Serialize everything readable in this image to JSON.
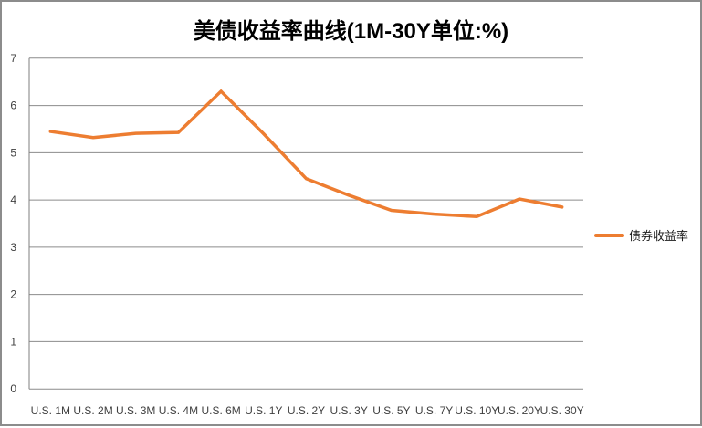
{
  "chart_data": {
    "type": "line",
    "title": "美债收益率曲线(1M-30Y单位:%)",
    "xlabel": "",
    "ylabel": "",
    "categories": [
      "U.S. 1M",
      "U.S. 2M",
      "U.S. 3M",
      "U.S. 4M",
      "U.S. 6M",
      "U.S. 1Y",
      "U.S. 2Y",
      "U.S. 3Y",
      "U.S. 5Y",
      "U.S. 7Y",
      "U.S. 10Y",
      "U.S. 20Y",
      "U.S. 30Y"
    ],
    "series": [
      {
        "name": "债券收益率",
        "values": [
          5.45,
          5.32,
          5.41,
          5.43,
          6.3,
          5.4,
          4.45,
          4.1,
          3.78,
          3.7,
          3.65,
          4.02,
          3.85
        ],
        "color": "#ED7D31"
      }
    ],
    "ylim": [
      0,
      7
    ],
    "yticks": [
      0,
      1,
      2,
      3,
      4,
      5,
      6,
      7
    ],
    "grid": true,
    "legend_position": "right"
  },
  "colors": {
    "accent": "#ED7D31",
    "gridline": "#8C8C8C",
    "axis": "#7F7F7F",
    "tick_text": "#3F3F3F",
    "title_text": "#000000",
    "frame_border": "#8C8C8C",
    "background": "#FFFFFF"
  }
}
